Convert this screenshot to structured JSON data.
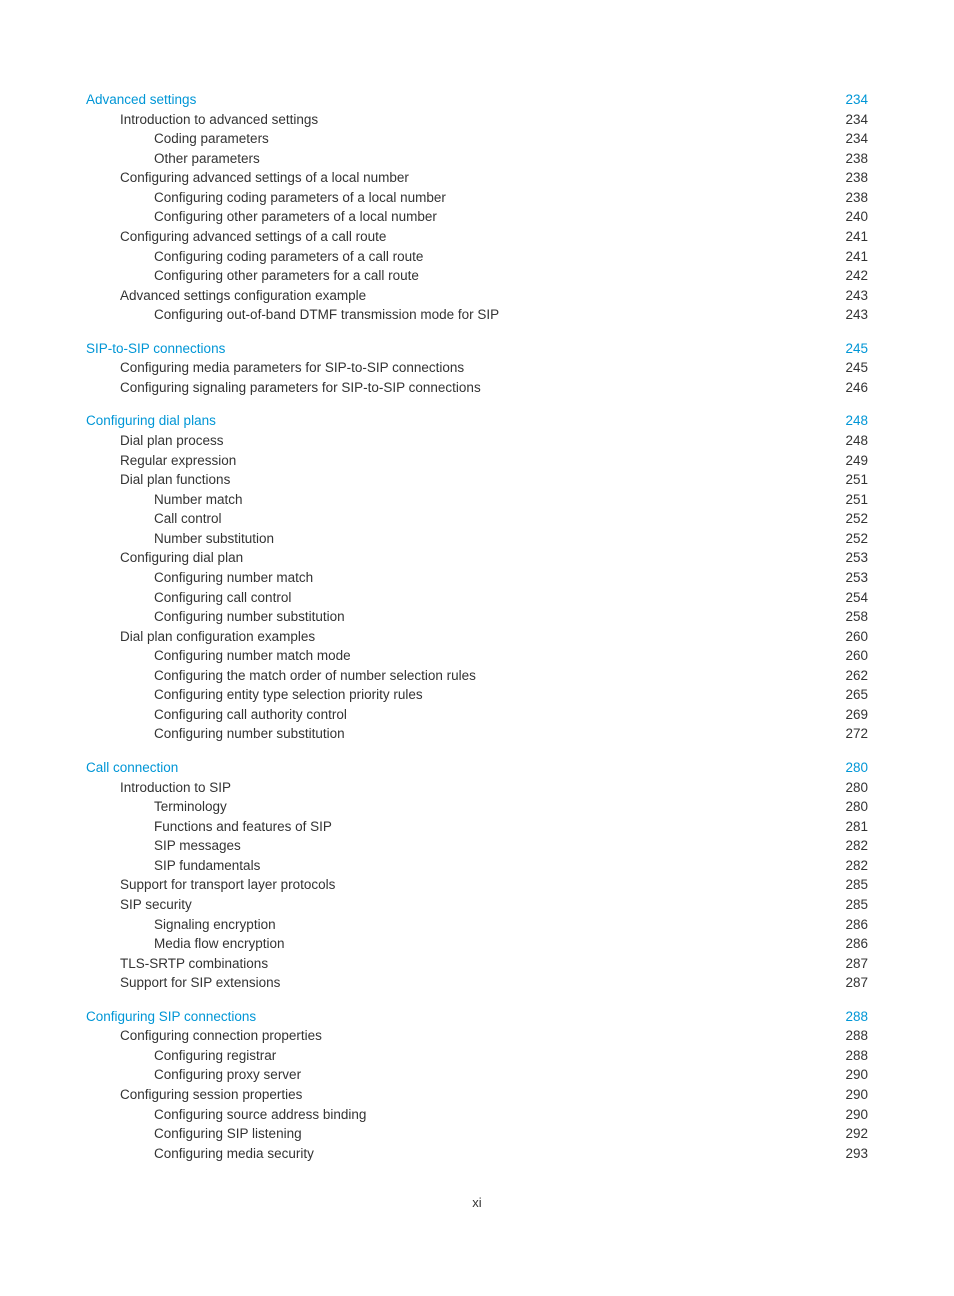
{
  "footer": "xi",
  "colors": {
    "heading": "#0096d6",
    "text": "#333333",
    "background": "#ffffff"
  },
  "fontsizes": {
    "entry": 13.5,
    "footer": 13
  },
  "toc": [
    {
      "level": 1,
      "label": "Advanced settings",
      "page": "234"
    },
    {
      "level": 2,
      "label": "Introduction to advanced settings",
      "page": "234"
    },
    {
      "level": 3,
      "label": "Coding parameters",
      "page": "234"
    },
    {
      "level": 3,
      "label": "Other parameters",
      "page": "238"
    },
    {
      "level": 2,
      "label": "Configuring advanced settings of a local number",
      "page": "238"
    },
    {
      "level": 3,
      "label": "Configuring coding parameters of a local number",
      "page": "238"
    },
    {
      "level": 3,
      "label": "Configuring other parameters of a local number",
      "page": "240"
    },
    {
      "level": 2,
      "label": "Configuring advanced settings of a call route",
      "page": "241"
    },
    {
      "level": 3,
      "label": "Configuring coding parameters of a call route",
      "page": "241"
    },
    {
      "level": 3,
      "label": "Configuring other parameters for a call route",
      "page": "242"
    },
    {
      "level": 2,
      "label": "Advanced settings configuration example",
      "page": "243"
    },
    {
      "level": 3,
      "label": "Configuring out-of-band DTMF transmission mode for SIP",
      "page": "243"
    },
    {
      "gap": true
    },
    {
      "level": 1,
      "label": "SIP-to-SIP connections",
      "page": "245"
    },
    {
      "level": 2,
      "label": "Configuring media parameters for SIP-to-SIP connections",
      "page": "245"
    },
    {
      "level": 2,
      "label": "Configuring signaling parameters for SIP-to-SIP connections",
      "page": "246"
    },
    {
      "gap": true
    },
    {
      "level": 1,
      "label": "Configuring dial plans",
      "page": "248"
    },
    {
      "level": 2,
      "label": "Dial plan process",
      "page": "248"
    },
    {
      "level": 2,
      "label": "Regular expression",
      "page": "249"
    },
    {
      "level": 2,
      "label": "Dial plan functions",
      "page": "251"
    },
    {
      "level": 3,
      "label": "Number match",
      "page": "251"
    },
    {
      "level": 3,
      "label": "Call control",
      "page": "252"
    },
    {
      "level": 3,
      "label": "Number substitution",
      "page": "252"
    },
    {
      "level": 2,
      "label": "Configuring dial plan",
      "page": "253"
    },
    {
      "level": 3,
      "label": "Configuring number match",
      "page": "253"
    },
    {
      "level": 3,
      "label": "Configuring call control",
      "page": "254"
    },
    {
      "level": 3,
      "label": "Configuring number substitution",
      "page": "258"
    },
    {
      "level": 2,
      "label": "Dial plan configuration examples",
      "page": "260"
    },
    {
      "level": 3,
      "label": "Configuring number match mode",
      "page": "260"
    },
    {
      "level": 3,
      "label": "Configuring the match order of number selection rules",
      "page": "262"
    },
    {
      "level": 3,
      "label": "Configuring entity type selection priority rules",
      "page": "265"
    },
    {
      "level": 3,
      "label": "Configuring call authority control",
      "page": "269"
    },
    {
      "level": 3,
      "label": "Configuring number substitution",
      "page": "272"
    },
    {
      "gap": true
    },
    {
      "level": 1,
      "label": "Call connection",
      "page": "280"
    },
    {
      "level": 2,
      "label": "Introduction to SIP",
      "page": "280"
    },
    {
      "level": 3,
      "label": "Terminology",
      "page": "280"
    },
    {
      "level": 3,
      "label": "Functions and features of SIP",
      "page": "281"
    },
    {
      "level": 3,
      "label": "SIP messages",
      "page": "282"
    },
    {
      "level": 3,
      "label": "SIP fundamentals",
      "page": "282"
    },
    {
      "level": 2,
      "label": "Support for transport layer protocols",
      "page": "285"
    },
    {
      "level": 2,
      "label": "SIP security",
      "page": "285"
    },
    {
      "level": 3,
      "label": "Signaling encryption",
      "page": "286"
    },
    {
      "level": 3,
      "label": "Media flow encryption",
      "page": "286"
    },
    {
      "level": 2,
      "label": "TLS-SRTP combinations",
      "page": "287"
    },
    {
      "level": 2,
      "label": "Support for SIP extensions",
      "page": "287"
    },
    {
      "gap": true
    },
    {
      "level": 1,
      "label": "Configuring SIP connections",
      "page": "288"
    },
    {
      "level": 2,
      "label": "Configuring connection properties",
      "page": "288"
    },
    {
      "level": 3,
      "label": "Configuring registrar",
      "page": "288"
    },
    {
      "level": 3,
      "label": "Configuring proxy server",
      "page": "290"
    },
    {
      "level": 2,
      "label": "Configuring session properties",
      "page": "290"
    },
    {
      "level": 3,
      "label": "Configuring source address binding",
      "page": "290"
    },
    {
      "level": 3,
      "label": "Configuring SIP listening",
      "page": "292"
    },
    {
      "level": 3,
      "label": "Configuring media security",
      "page": "293"
    }
  ]
}
